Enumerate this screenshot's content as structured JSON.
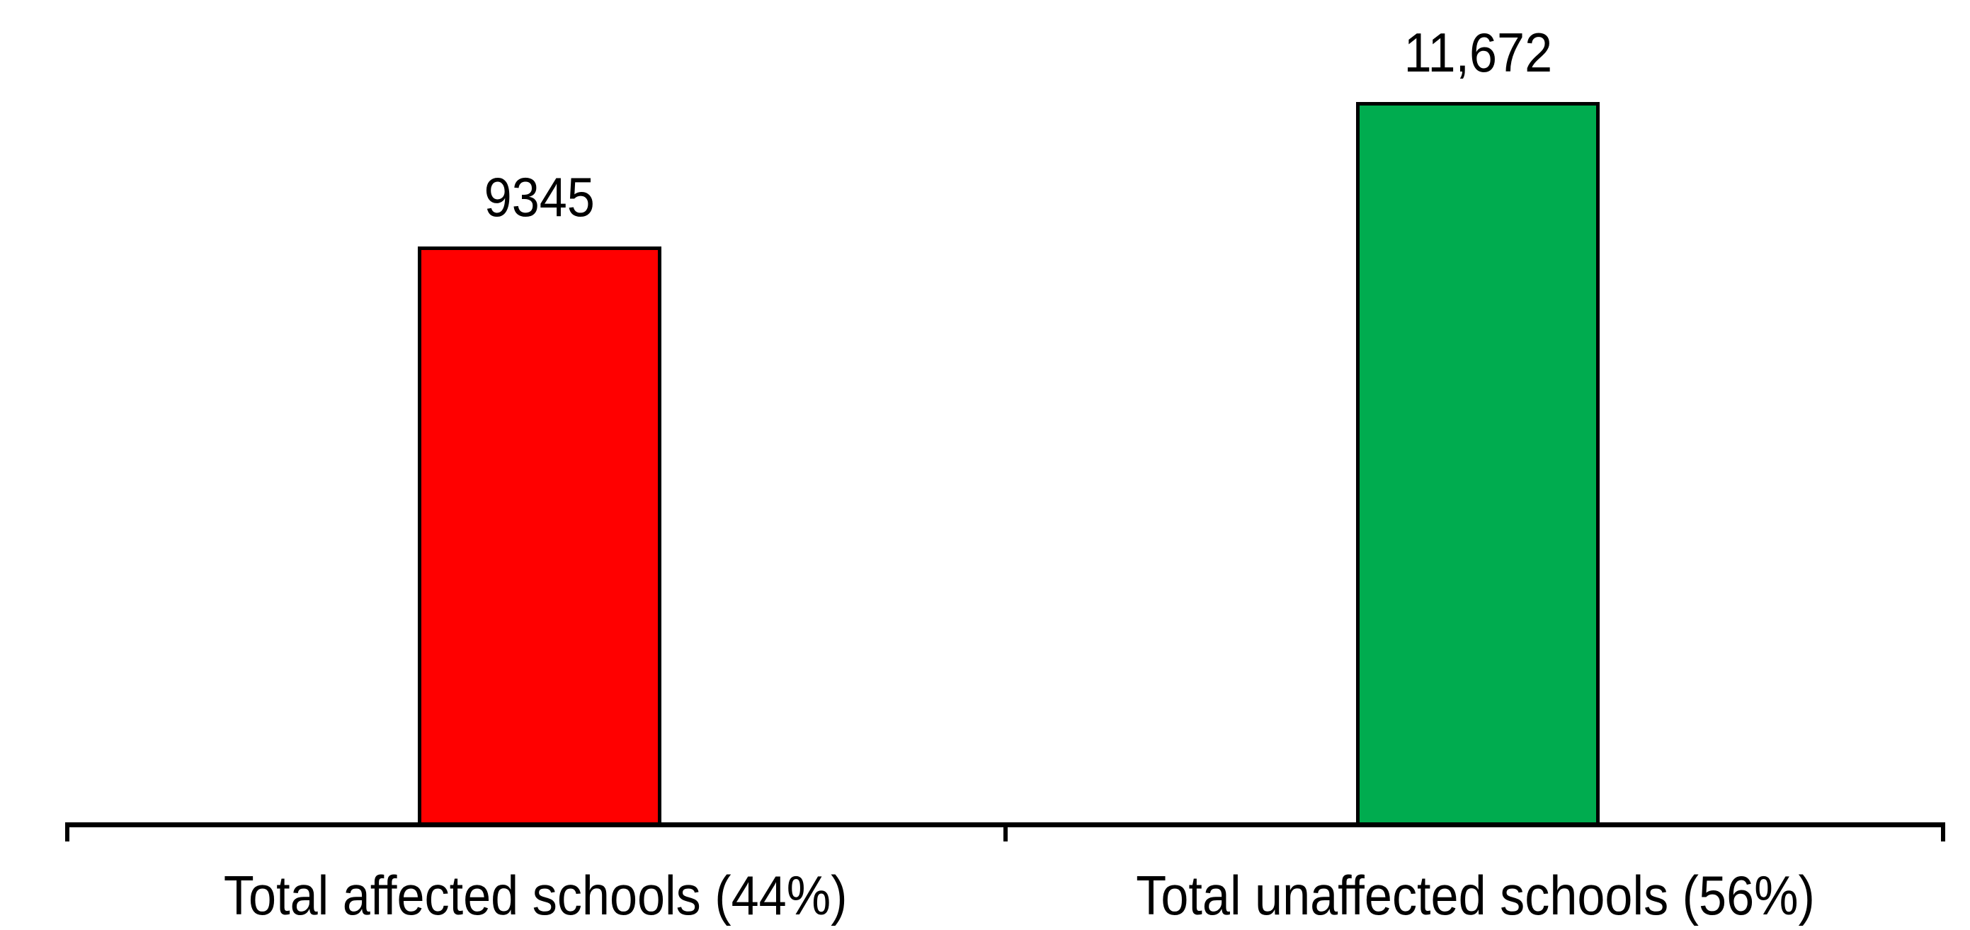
{
  "chart_data": {
    "type": "bar",
    "categories": [
      "Total affected schools (44%)",
      "Total unaffected schools (56%)"
    ],
    "values": [
      9345,
      11672
    ],
    "value_labels": [
      "9345",
      "11,672"
    ],
    "series_colors": [
      "#FF0000",
      "#00AC4F"
    ],
    "bar_border_color": "#000000",
    "axis_color": "#000000",
    "background_color": "#FFFFFF",
    "title": "",
    "xlabel": "",
    "ylabel": "",
    "ylim": [
      0,
      12000
    ],
    "grid": false,
    "legend": false,
    "x_axis_ticks": [
      "left",
      "center",
      "right"
    ]
  }
}
